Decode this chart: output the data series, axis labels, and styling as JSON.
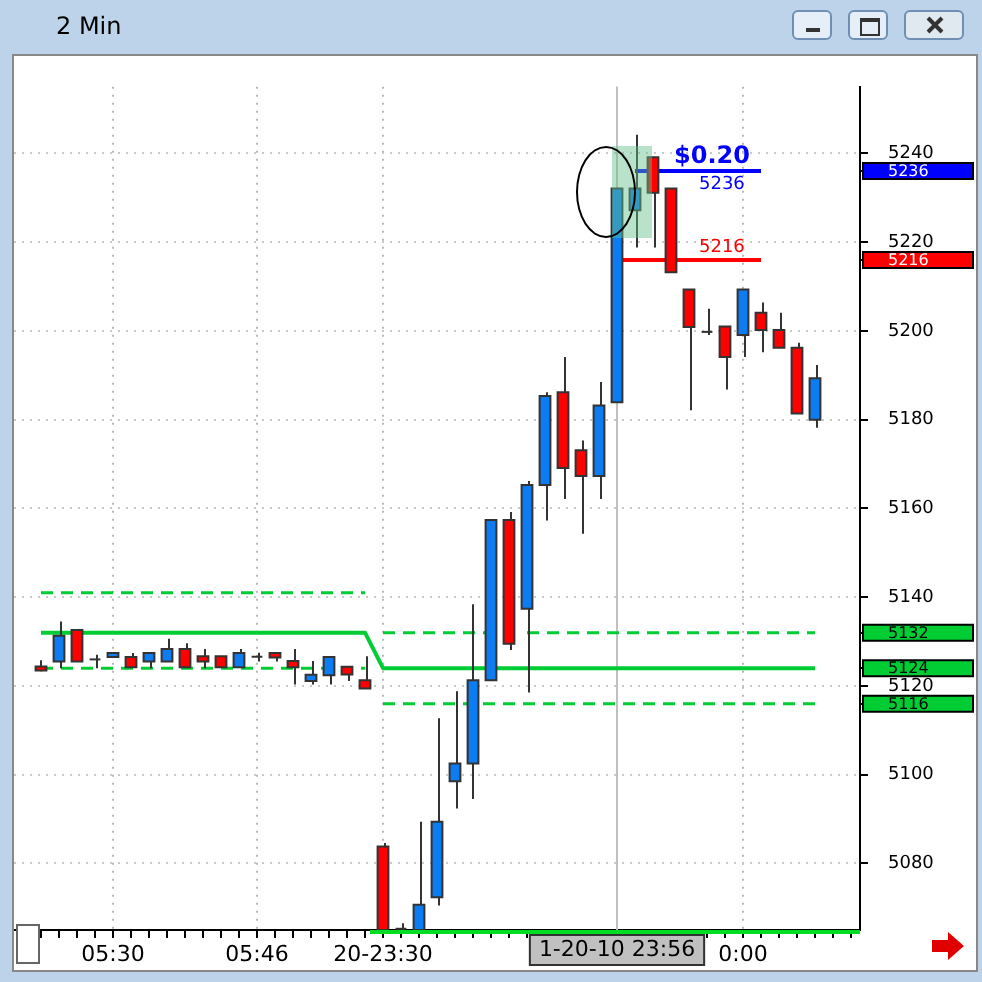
{
  "chart_data": {
    "type": "candlestick",
    "title": "2 Min",
    "categories": [
      null,
      null,
      null,
      null,
      "05:30",
      null,
      null,
      null,
      null,
      null,
      null,
      null,
      "05:46",
      null,
      null,
      null,
      null,
      null,
      null,
      "20-23:30",
      null,
      null,
      null,
      null,
      null,
      null,
      null,
      null,
      null,
      null,
      null,
      null,
      "1-20-10 23:56",
      null,
      null,
      null,
      null,
      null,
      null,
      "0:00",
      null,
      null,
      null,
      null
    ],
    "ohlc": [
      [
        5124.4,
        5125.8,
        5123.3,
        5123.5
      ],
      [
        5125.5,
        5134.5,
        5124.0,
        5131.3
      ],
      [
        5132.6,
        5132.6,
        5125.5,
        5125.5
      ],
      [
        5126.2,
        5127,
        5124,
        5126.2
      ],
      [
        5126.5,
        5127.4,
        5126.5,
        5127.4
      ],
      [
        5126.5,
        5127.4,
        5124.2,
        5124.2
      ],
      [
        5125.5,
        5127.4,
        5124.0,
        5127.4
      ],
      [
        5125.5,
        5130.6,
        5125.5,
        5128.3
      ],
      [
        5128.3,
        5129.6,
        5124.2,
        5124.2
      ],
      [
        5126.7,
        5128.3,
        5124.0,
        5125.5
      ],
      [
        5126.7,
        5126.7,
        5124.2,
        5124.2
      ],
      [
        5124.2,
        5128.3,
        5124.2,
        5127.4
      ],
      [
        5126.8,
        5127.5,
        5125.5,
        5126.8
      ],
      [
        5127.4,
        5127.4,
        5125.5,
        5126.4
      ],
      [
        5125.6,
        5128.3,
        5120.3,
        5124.2
      ],
      [
        5121.1,
        5125.6,
        5120.3,
        5122.5
      ],
      [
        5122.4,
        5126.5,
        5120.3,
        5126.5
      ],
      [
        5124.3,
        5124.3,
        5121.1,
        5122.6
      ],
      [
        5121.3,
        5126.7,
        5119.4,
        5119.4
      ],
      [
        5083.8,
        5084.6,
        5065,
        5065
      ],
      [
        5065.5,
        5066.5,
        5065,
        5065.5
      ],
      [
        5065,
        5089.4,
        5065,
        5070.7
      ],
      [
        5072.4,
        5112.7,
        5070.5,
        5089.4
      ],
      [
        5098.5,
        5118.8,
        5092.4,
        5102.5
      ],
      [
        5102.5,
        5138.4,
        5094.5,
        5121.3
      ],
      [
        5121.3,
        5157.4,
        5121.3,
        5157.4
      ],
      [
        5157.4,
        5159.2,
        5128.1,
        5129.5
      ],
      [
        5137.4,
        5166.2,
        5118.5,
        5165.3
      ],
      [
        5165.3,
        5186.2,
        5157.3,
        5185.3
      ],
      [
        5186.2,
        5194.1,
        5162.1,
        5169.1
      ],
      [
        5173.1,
        5175.3,
        5154.3,
        5167.3
      ],
      [
        5167.3,
        5188.5,
        5162.1,
        5183.2
      ],
      [
        5183.9,
        5232.1,
        5183.9,
        5232.1
      ],
      [
        5227.2,
        5244.2,
        5218.8,
        5232.1
      ],
      [
        5239.1,
        5239.1,
        5218.8,
        5231.1
      ],
      [
        5232.1,
        5232.1,
        5213.2,
        5213.2
      ],
      [
        5209.3,
        5209.3,
        5182.1,
        5200.9
      ],
      [
        5200,
        5205,
        5199.1,
        5200
      ],
      [
        5201.0,
        5201.0,
        5186.8,
        5194.1
      ],
      [
        5199.1,
        5209.3,
        5194.1,
        5209.3
      ],
      [
        5204.1,
        5206.4,
        5195.2,
        5200.2
      ],
      [
        5200.2,
        5204.1,
        5196.2,
        5196.2
      ],
      [
        5196.2,
        5197.3,
        5181.4,
        5181.4
      ],
      [
        5180.0,
        5192.3,
        5178.2,
        5189.3
      ]
    ],
    "colors": [
      "#ff0000",
      "#0b7cf2",
      "#ff0000",
      "#333333",
      "#0b7cf2",
      "#ff0000",
      "#0b7cf2",
      "#0b7cf2",
      "#ff0000",
      "#ff0000",
      "#ff0000",
      "#0b7cf2",
      "#333333",
      "#ff0000",
      "#ff0000",
      "#0b7cf2",
      "#0b7cf2",
      "#ff0000",
      "#ff0000",
      "#ff0000",
      "#333333",
      "#0b7cf2",
      "#0b7cf2",
      "#0b7cf2",
      "#0b7cf2",
      "#0b7cf2",
      "#ff0000",
      "#0b7cf2",
      "#0b7cf2",
      "#ff0000",
      "#ff0000",
      "#0b7cf2",
      "#0b7cf2",
      "#0b7cf2",
      "#ff0000",
      "#ff0000",
      "#ff0000",
      "#333333",
      "#ff0000",
      "#0b7cf2",
      "#ff0000",
      "#ff0000",
      "#ff0000",
      "#0b7cf2"
    ],
    "series": [
      {
        "type": "line",
        "color": "#00cc33",
        "line_style": "solid",
        "values": [
          5132,
          5132,
          5132,
          5132,
          5132,
          5132,
          5132,
          5132,
          5132,
          5132,
          5132,
          5132,
          5132,
          5132,
          5132,
          5132,
          5132,
          5132,
          5132,
          5124,
          5124,
          5124,
          5124,
          5124,
          5124,
          5124,
          5124,
          5124,
          5124,
          5124,
          5124,
          5124,
          5124,
          5124,
          5124,
          5124,
          5124,
          5124,
          5124,
          5124,
          5124,
          5124,
          5124,
          5124
        ]
      },
      {
        "type": "line",
        "color": "#00cc33",
        "line_style": "dashed",
        "values": [
          5141,
          5141,
          5141,
          5141,
          5141,
          5141,
          5141,
          5141,
          5141,
          5141,
          5141,
          5141,
          5141,
          5141,
          5141,
          5141,
          5141,
          5141,
          5141,
          null,
          null,
          null,
          null,
          null,
          null,
          null,
          null,
          null,
          null,
          null,
          null,
          null,
          null,
          null,
          null,
          null,
          null,
          null,
          null,
          null,
          null,
          null,
          null,
          null
        ]
      },
      {
        "type": "line",
        "color": "#00cc33",
        "line_style": "dashed",
        "values": [
          5124,
          5124,
          5124,
          5124,
          5124,
          5124,
          5124,
          5124,
          5124,
          5124,
          5124,
          5124,
          5124,
          5124,
          5124,
          5124,
          5124,
          5124,
          5124,
          null,
          null,
          null,
          null,
          null,
          null,
          null,
          null,
          null,
          null,
          null,
          null,
          null,
          null,
          null,
          null,
          null,
          null,
          null,
          null,
          null,
          null,
          null,
          null,
          null
        ]
      },
      {
        "type": "line",
        "color": "#00cc33",
        "line_style": "dashed",
        "values": [
          null,
          null,
          null,
          null,
          null,
          null,
          null,
          null,
          null,
          null,
          null,
          null,
          null,
          null,
          null,
          null,
          null,
          null,
          null,
          5132,
          5132,
          5132,
          5132,
          5132,
          5132,
          5132,
          null,
          5132,
          5132,
          5132,
          5132,
          5132,
          5132,
          5132,
          5132,
          5132,
          5132,
          5132,
          5132,
          5132,
          5132,
          5132,
          5132,
          5132
        ]
      },
      {
        "type": "line",
        "color": "#00cc33",
        "line_style": "dashed",
        "values": [
          null,
          null,
          null,
          null,
          null,
          null,
          null,
          null,
          null,
          null,
          null,
          null,
          null,
          null,
          null,
          null,
          null,
          null,
          null,
          5116,
          5116,
          5116,
          5116,
          5116,
          5116,
          5116,
          5116,
          5116,
          5116,
          5116,
          5116,
          5116,
          5116,
          5116,
          5116,
          5116,
          5116,
          5116,
          5116,
          5116,
          5116,
          5116,
          5116,
          5116
        ]
      },
      {
        "type": "line",
        "color": "#0000ff",
        "line_style": "solid",
        "values": [
          null,
          null,
          null,
          null,
          null,
          null,
          null,
          null,
          null,
          null,
          null,
          null,
          null,
          null,
          null,
          null,
          null,
          null,
          null,
          null,
          null,
          null,
          null,
          null,
          null,
          null,
          null,
          null,
          null,
          null,
          null,
          null,
          null,
          5236,
          5236,
          5236,
          5236,
          5236,
          5236,
          5236,
          5236,
          null,
          null,
          null
        ],
        "value_labels": [
          null,
          null,
          null,
          null,
          null,
          null,
          null,
          null,
          null,
          null,
          null,
          null,
          null,
          null,
          null,
          null,
          null,
          null,
          null,
          null,
          null,
          null,
          null,
          null,
          null,
          null,
          null,
          null,
          null,
          null,
          null,
          null,
          null,
          null,
          null,
          null,
          "5236",
          null,
          null,
          null,
          null,
          null,
          null,
          null
        ]
      },
      {
        "type": "line",
        "color": "#ff0000",
        "line_style": "solid",
        "values": [
          null,
          null,
          null,
          null,
          null,
          null,
          null,
          null,
          null,
          null,
          null,
          null,
          null,
          null,
          null,
          null,
          null,
          null,
          null,
          null,
          null,
          null,
          null,
          null,
          null,
          null,
          null,
          null,
          null,
          null,
          null,
          null,
          5216,
          5216,
          5216,
          5216,
          5216,
          5216,
          5216,
          5216,
          5216,
          null,
          null,
          null
        ],
        "value_labels": [
          null,
          null,
          null,
          null,
          null,
          null,
          null,
          null,
          null,
          null,
          null,
          null,
          null,
          null,
          null,
          null,
          null,
          null,
          null,
          null,
          null,
          null,
          null,
          null,
          null,
          null,
          null,
          null,
          null,
          null,
          null,
          null,
          null,
          null,
          null,
          null,
          "5216",
          null,
          null,
          null,
          null,
          null,
          null,
          null
        ]
      }
    ],
    "ref_lines": [
      {
        "axis": "x",
        "value": "1-20-10 23:56",
        "color": "#c0c0c0"
      }
    ],
    "annotations": [
      "$0.20"
    ],
    "ylim": [
      5065,
      5255
    ],
    "yticks": [
      5080,
      5100,
      5116,
      5120,
      5124,
      5132,
      5140,
      5160,
      5180,
      5200,
      5216,
      5220,
      5236,
      5240
    ],
    "grid": true,
    "legend": false,
    "marker": "none"
  }
}
